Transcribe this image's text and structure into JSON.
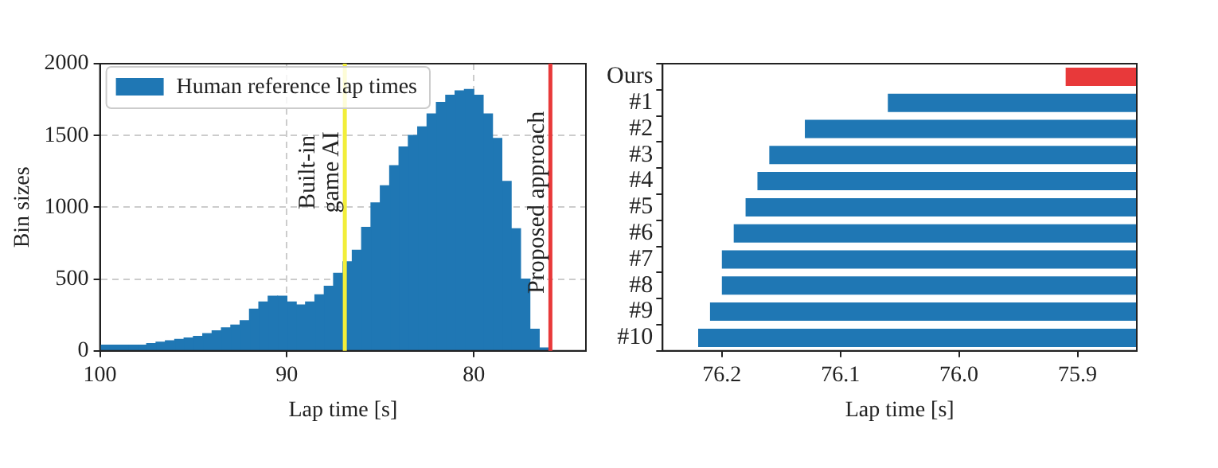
{
  "chart_data": [
    {
      "type": "histogram",
      "xlabel": "Lap time [s]",
      "ylabel": "Bin sizes",
      "bins": [
        76,
        76.5,
        77,
        77.5,
        78,
        78.5,
        79,
        79.5,
        80,
        80.5,
        81,
        81.5,
        82,
        82.5,
        83,
        83.5,
        84,
        84.5,
        85,
        85.5,
        86,
        86.5,
        87,
        87.5,
        88,
        88.5,
        89,
        89.5,
        90,
        90.5,
        91,
        91.5,
        92,
        92.5,
        93,
        93.5,
        94,
        94.5,
        95,
        95.5,
        96,
        96.5,
        97,
        97.5,
        98,
        98.5,
        99,
        99.5,
        100
      ],
      "series": [
        {
          "name": "Human reference lap times",
          "color": "#1f77b4",
          "values": [
            20,
            150,
            500,
            850,
            1180,
            1480,
            1650,
            1780,
            1820,
            1810,
            1780,
            1730,
            1650,
            1560,
            1500,
            1420,
            1290,
            1150,
            1030,
            860,
            700,
            620,
            540,
            450,
            390,
            340,
            320,
            340,
            380,
            380,
            340,
            290,
            210,
            180,
            160,
            140,
            120,
            100,
            90,
            80,
            70,
            60,
            50,
            40,
            40,
            40,
            40,
            40
          ]
        }
      ],
      "xlim": [
        100,
        74
      ],
      "xticks": [
        100,
        90,
        80
      ],
      "ylim": [
        0,
        2000
      ],
      "yticks": [
        0,
        500,
        1000,
        1500,
        2000
      ],
      "ref_lines": [
        {
          "axis": "x",
          "value": 86.9,
          "label": "Built-in game AI",
          "color": "#f2ee3a"
        },
        {
          "axis": "x",
          "value": 75.9,
          "label": "Proposed approach",
          "color": "#e8393a"
        }
      ],
      "grid": true,
      "legend": "top left"
    },
    {
      "type": "bar",
      "orientation": "horizontal",
      "xlabel": "Lap time [s]",
      "categories": [
        "Ours",
        "#1",
        "#2",
        "#3",
        "#4",
        "#5",
        "#6",
        "#7",
        "#8",
        "#9",
        "#10"
      ],
      "values": [
        75.91,
        76.06,
        76.13,
        76.16,
        76.17,
        76.18,
        76.19,
        76.2,
        76.2,
        76.21,
        76.22
      ],
      "colors": [
        "#e8393a",
        "#1f77b4",
        "#1f77b4",
        "#1f77b4",
        "#1f77b4",
        "#1f77b4",
        "#1f77b4",
        "#1f77b4",
        "#1f77b4",
        "#1f77b4",
        "#1f77b4"
      ],
      "xlim": [
        76.25,
        75.85
      ],
      "xticks": [
        76.2,
        76.1,
        {
          "value": 76,
          "label": "76.0"
        },
        75.9
      ],
      "grid": false
    }
  ]
}
